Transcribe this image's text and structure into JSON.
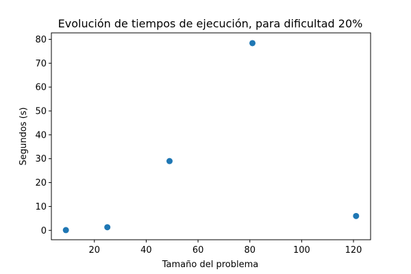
{
  "chart_data": {
    "type": "scatter",
    "title": "Evolución de tiempos de ejecución, para dificultad 20%",
    "xlabel": "Tamaño del problema",
    "ylabel": "Segundos (s)",
    "xlim": [
      3.4,
      126.6
    ],
    "ylim": [
      -3.94,
      82.7
    ],
    "xticks": [
      20,
      40,
      60,
      80,
      100,
      120
    ],
    "yticks": [
      0,
      10,
      20,
      30,
      40,
      50,
      60,
      70,
      80
    ],
    "grid": false,
    "marker_color": "#1f77b4",
    "points": [
      {
        "x": 9,
        "y": 0.1
      },
      {
        "x": 25,
        "y": 1.3
      },
      {
        "x": 49,
        "y": 29.0
      },
      {
        "x": 81,
        "y": 78.4
      },
      {
        "x": 121,
        "y": 6.0
      }
    ]
  }
}
